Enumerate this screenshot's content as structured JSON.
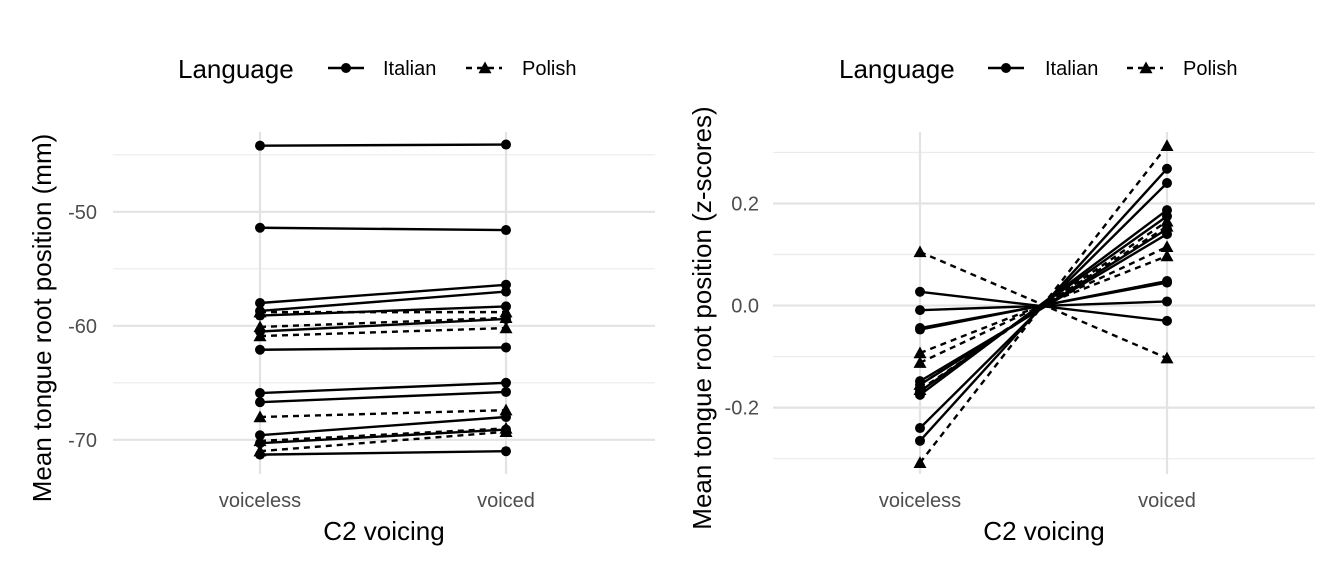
{
  "chart_data": [
    {
      "type": "line",
      "title": "",
      "xlabel": "C2 voicing",
      "ylabel": "Mean tongue root position (mm)",
      "categories": [
        "voiceless",
        "voiced"
      ],
      "yticks": [
        -50,
        -60,
        -70
      ],
      "yticklabels": [
        "-50",
        "-60",
        "-70"
      ],
      "ylim": [
        -73,
        -43
      ],
      "grid": true,
      "legend": {
        "title": "Language",
        "position": "top",
        "entries": [
          "Italian",
          "Polish"
        ]
      },
      "series": [
        {
          "language": "Italian",
          "values": [
            -44.2,
            -44.1
          ]
        },
        {
          "language": "Italian",
          "values": [
            -51.4,
            -51.6
          ]
        },
        {
          "language": "Italian",
          "values": [
            -58.0,
            -56.4
          ]
        },
        {
          "language": "Italian",
          "values": [
            -58.7,
            -57.0
          ]
        },
        {
          "language": "Italian",
          "values": [
            -59.1,
            -58.3
          ]
        },
        {
          "language": "Italian",
          "values": [
            -60.5,
            -59.4
          ]
        },
        {
          "language": "Italian",
          "values": [
            -62.1,
            -61.9
          ]
        },
        {
          "language": "Italian",
          "values": [
            -65.9,
            -65.0
          ]
        },
        {
          "language": "Italian",
          "values": [
            -66.7,
            -65.8
          ]
        },
        {
          "language": "Italian",
          "values": [
            -69.6,
            -68.0
          ]
        },
        {
          "language": "Italian",
          "values": [
            -70.3,
            -69.1
          ]
        },
        {
          "language": "Italian",
          "values": [
            -71.3,
            -71.0
          ]
        },
        {
          "language": "Polish",
          "values": [
            -58.8,
            -58.8
          ]
        },
        {
          "language": "Polish",
          "values": [
            -60.1,
            -59.3
          ]
        },
        {
          "language": "Polish",
          "values": [
            -60.9,
            -60.2
          ]
        },
        {
          "language": "Polish",
          "values": [
            -68.0,
            -67.4
          ]
        },
        {
          "language": "Polish",
          "values": [
            -70.1,
            -69.0
          ]
        },
        {
          "language": "Polish",
          "values": [
            -71.0,
            -69.3
          ]
        }
      ]
    },
    {
      "type": "line",
      "title": "",
      "xlabel": "C2 voicing",
      "ylabel": "Mean tongue root position (z-scores)",
      "categories": [
        "voiceless",
        "voiced"
      ],
      "yticks": [
        0.2,
        0.0,
        -0.2
      ],
      "yticklabels": [
        "0.2",
        "0.0",
        "-0.2"
      ],
      "ylim": [
        -0.33,
        0.34
      ],
      "grid": true,
      "legend": {
        "title": "Language",
        "position": "top",
        "entries": [
          "Italian",
          "Polish"
        ]
      },
      "series": [
        {
          "language": "Italian",
          "values": [
            0.027,
            -0.03
          ]
        },
        {
          "language": "Italian",
          "values": [
            -0.009,
            0.008
          ]
        },
        {
          "language": "Italian",
          "values": [
            -0.044,
            0.045
          ]
        },
        {
          "language": "Italian",
          "values": [
            -0.047,
            0.048
          ]
        },
        {
          "language": "Italian",
          "values": [
            -0.148,
            0.14
          ]
        },
        {
          "language": "Italian",
          "values": [
            -0.155,
            0.15
          ]
        },
        {
          "language": "Italian",
          "values": [
            -0.168,
            0.175
          ]
        },
        {
          "language": "Italian",
          "values": [
            -0.175,
            0.187
          ]
        },
        {
          "language": "Italian",
          "values": [
            -0.24,
            0.24
          ]
        },
        {
          "language": "Italian",
          "values": [
            -0.265,
            0.268
          ]
        },
        {
          "language": "Polish",
          "values": [
            0.105,
            -0.103
          ]
        },
        {
          "language": "Polish",
          "values": [
            -0.093,
            0.097
          ]
        },
        {
          "language": "Polish",
          "values": [
            -0.112,
            0.115
          ]
        },
        {
          "language": "Polish",
          "values": [
            -0.155,
            0.155
          ]
        },
        {
          "language": "Polish",
          "values": [
            -0.165,
            0.165
          ]
        },
        {
          "language": "Polish",
          "values": [
            -0.308,
            0.313
          ]
        }
      ]
    }
  ]
}
